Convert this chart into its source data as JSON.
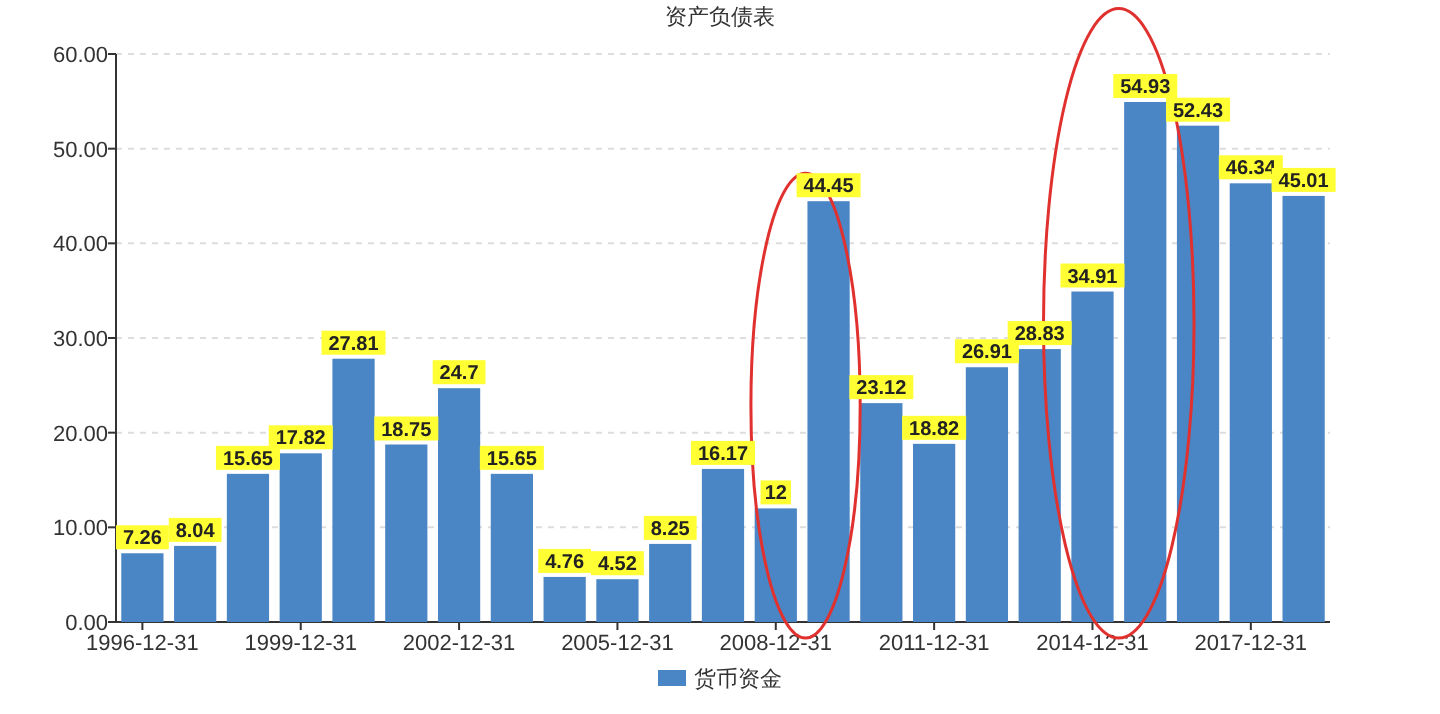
{
  "chart_data": {
    "type": "bar",
    "title": "资产负债表",
    "categories": [
      "1996-12-31",
      null,
      null,
      "1999-12-31",
      null,
      null,
      "2002-12-31",
      null,
      null,
      "2005-12-31",
      null,
      null,
      "2008-12-31",
      null,
      null,
      "2011-12-31",
      null,
      null,
      "2014-12-31",
      null,
      null,
      "2017-12-31",
      null
    ],
    "series": [
      {
        "name": "货币资金",
        "color": "#4a86c5",
        "values": [
          7.26,
          8.04,
          15.65,
          17.82,
          27.81,
          18.75,
          24.7,
          15.65,
          4.76,
          4.52,
          8.25,
          16.17,
          12,
          44.45,
          23.12,
          18.82,
          26.91,
          28.83,
          34.91,
          54.93,
          52.43,
          46.34,
          45.01
        ]
      }
    ],
    "ylim": [
      0,
      60
    ],
    "yticks": [
      {
        "value": 0,
        "label": "0.00"
      },
      {
        "value": 10,
        "label": "10.00"
      },
      {
        "value": 20,
        "label": "20.00"
      },
      {
        "value": 30,
        "label": "30.00"
      },
      {
        "value": 40,
        "label": "40.00"
      },
      {
        "value": 50,
        "label": "50.00"
      },
      {
        "value": 60,
        "label": "60.00"
      }
    ],
    "grid": "y",
    "data_labels": true,
    "legend": "bottom"
  }
}
